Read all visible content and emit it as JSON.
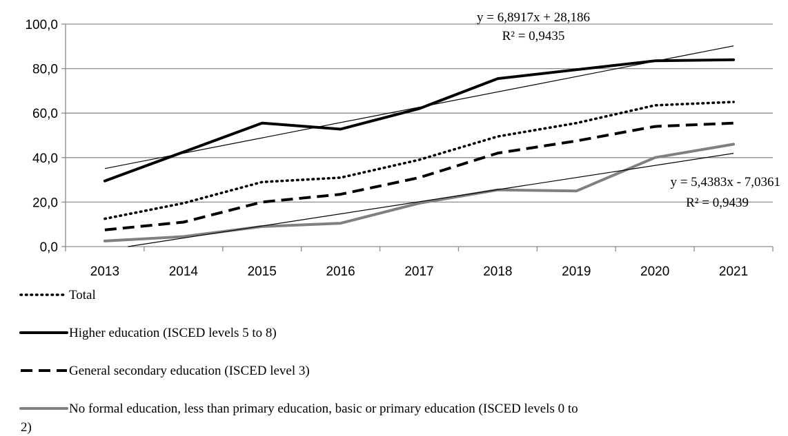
{
  "chart_data": {
    "type": "line",
    "categories": [
      "2013",
      "2014",
      "2015",
      "2016",
      "2017",
      "2018",
      "2019",
      "2020",
      "2021"
    ],
    "ylim": [
      0,
      100
    ],
    "y_ticks": [
      "0,0",
      "20,0",
      "40,0",
      "60,0",
      "80,0",
      "100,0"
    ],
    "grid": "horizontal",
    "legend_position": "bottom",
    "series": [
      {
        "name": "Total",
        "style": "dotted",
        "color": "#000000",
        "values": [
          12.5,
          19.5,
          29.0,
          31.0,
          39.0,
          49.5,
          55.5,
          63.5,
          65.0
        ]
      },
      {
        "name": "Higher education (ISCED levels 5 to 8)",
        "style": "solid",
        "color": "#000000",
        "values": [
          29.5,
          42.5,
          55.5,
          52.8,
          62.0,
          75.5,
          79.5,
          83.5,
          84.0
        ]
      },
      {
        "name": "General secondary education (ISCED level 3)",
        "style": "dashed",
        "color": "#000000",
        "values": [
          7.5,
          11.0,
          20.0,
          23.5,
          31.0,
          42.0,
          47.5,
          54.0,
          55.5
        ]
      },
      {
        "name": "No formal education, less than primary education, basic or primary education (ISCED levels 0 to 2)",
        "style": "solid",
        "color": "#808080",
        "values": [
          2.5,
          4.5,
          9.0,
          10.5,
          19.5,
          25.5,
          25.0,
          40.0,
          46.0
        ]
      }
    ],
    "trendlines": [
      {
        "slope": 6.8917,
        "intercept": 28.186,
        "equation": "y = 6,8917x + 28,186",
        "r2": "R² = 0,9435"
      },
      {
        "slope": 5.4383,
        "intercept": -7.0361,
        "equation": "y = 5,4383x - 7,0361",
        "r2": "R² = 0,9439"
      }
    ]
  }
}
